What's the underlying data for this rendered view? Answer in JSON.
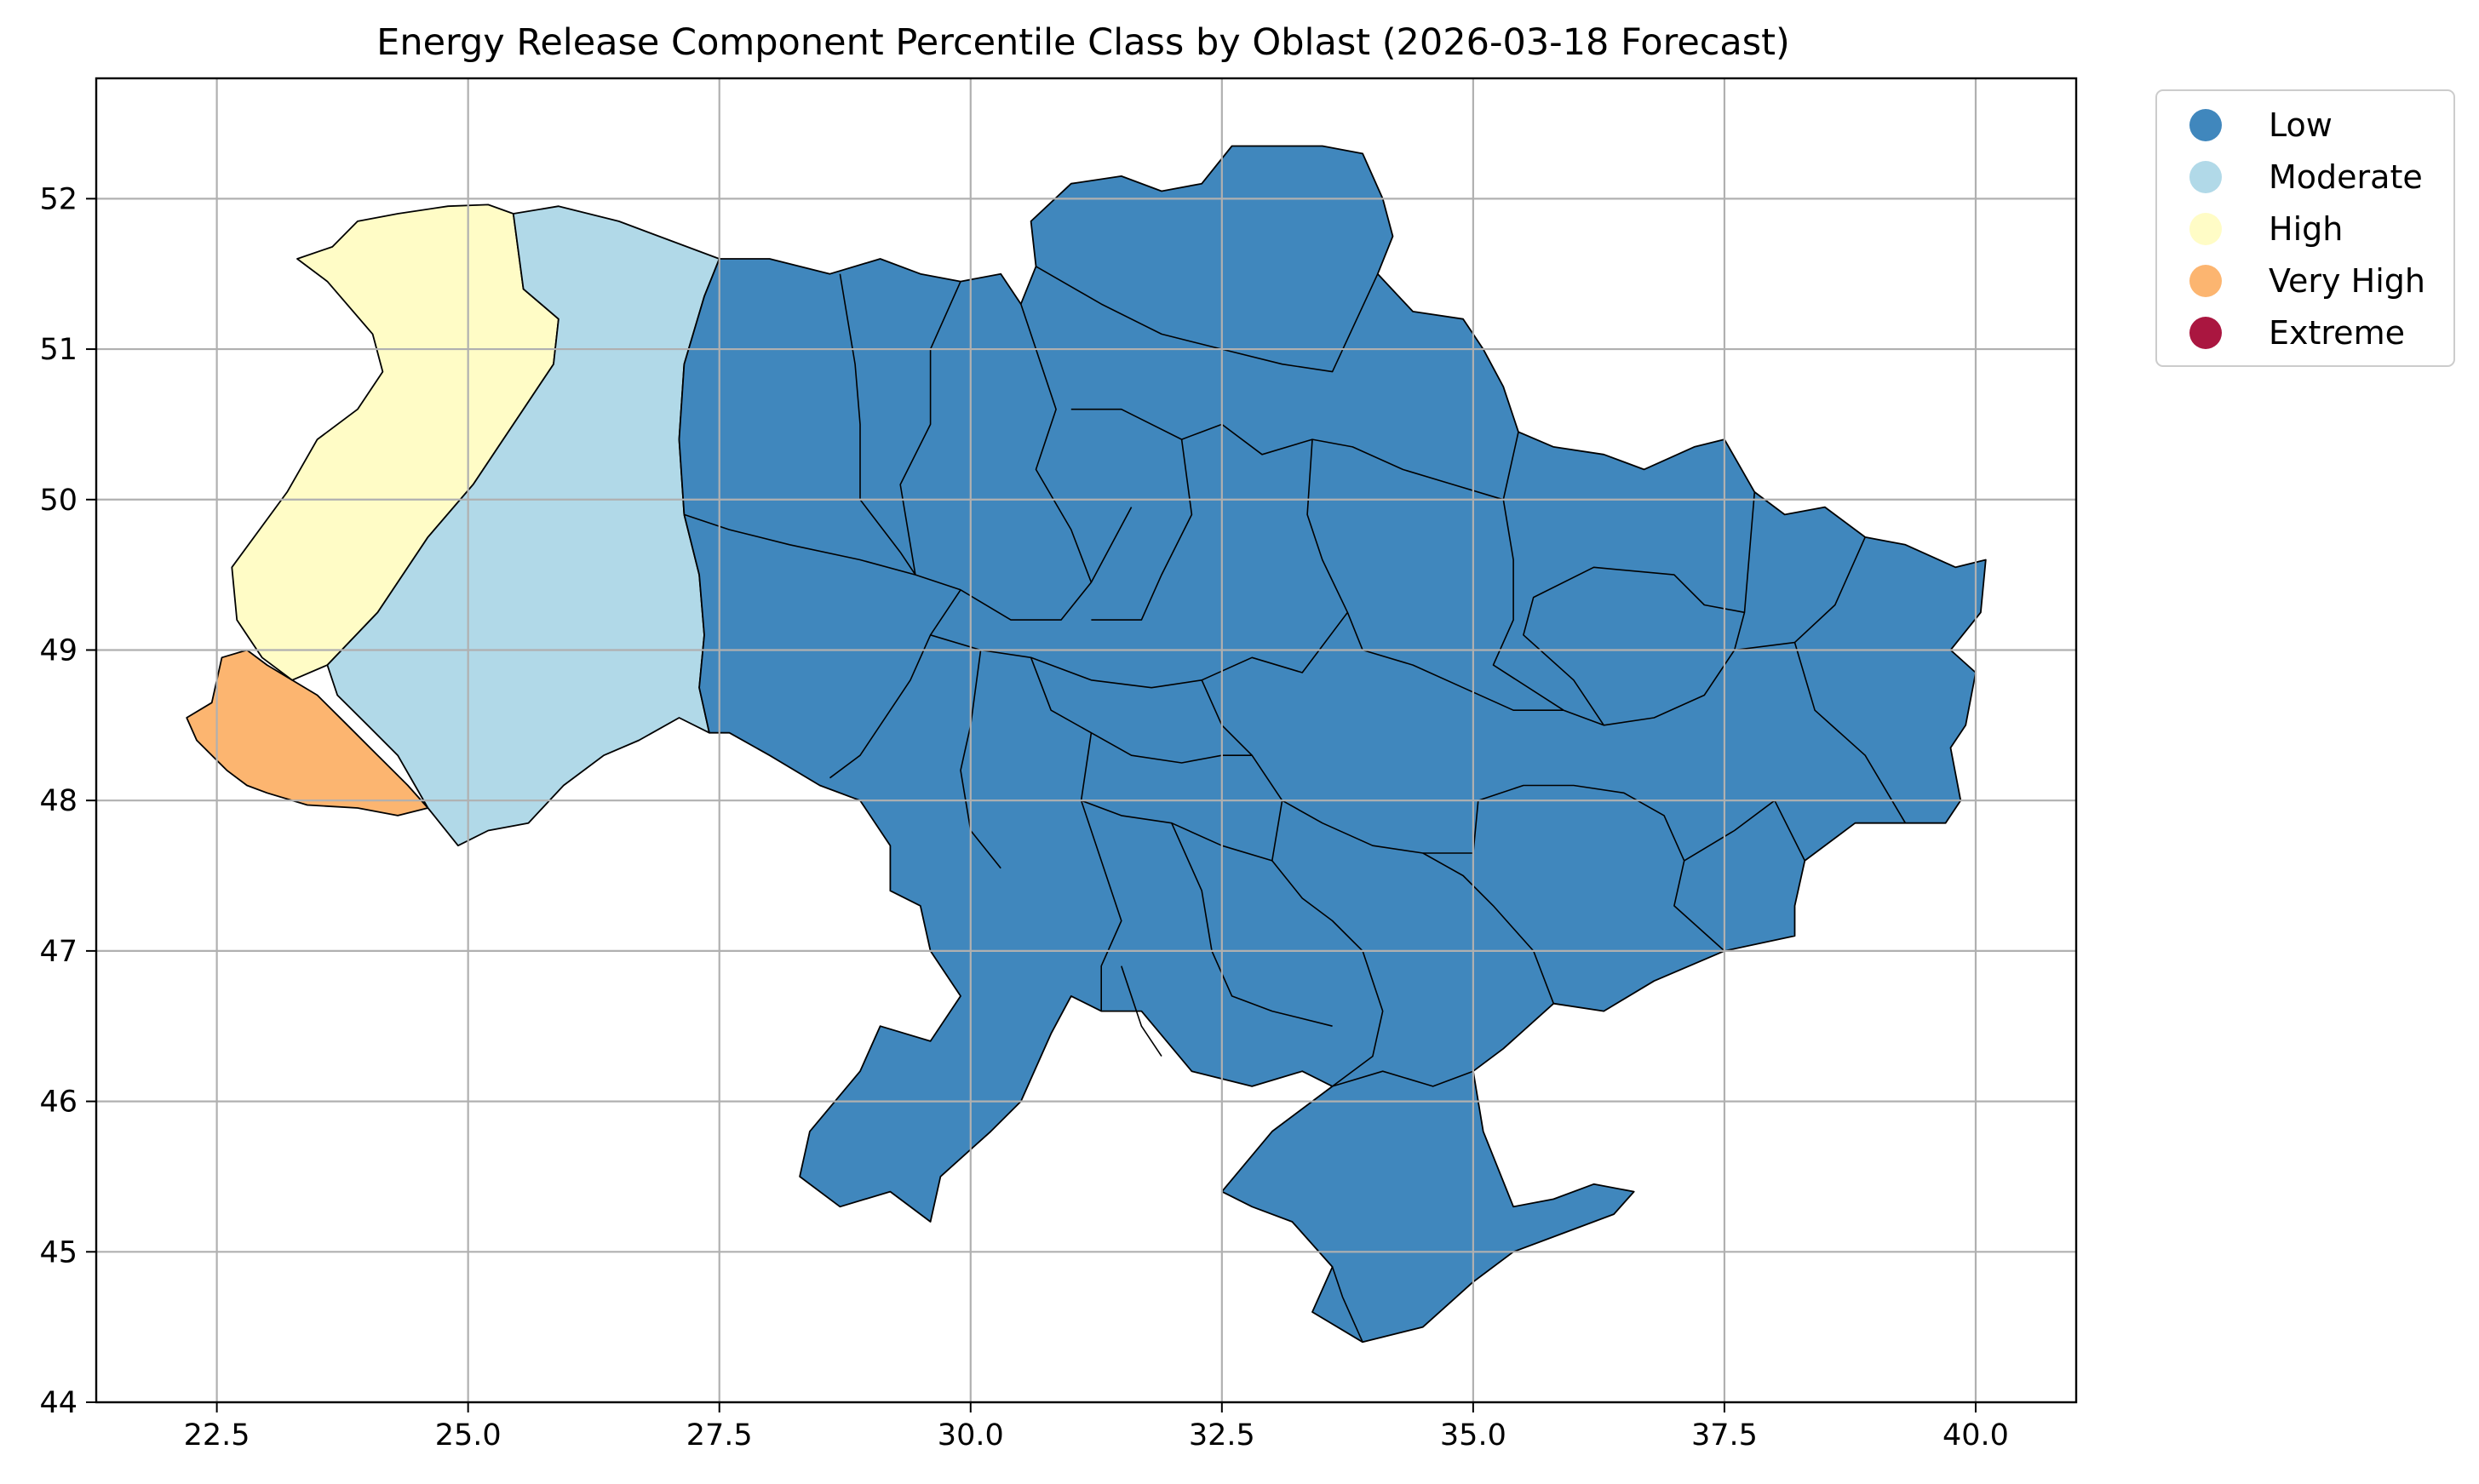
{
  "title": "Energy Release Component Percentile Class by Oblast (2026-03-18 Forecast)",
  "x_axis": {
    "range": [
      21.3,
      41.0
    ],
    "ticks": [
      "22.5",
      "25.0",
      "27.5",
      "30.0",
      "32.5",
      "35.0",
      "37.5",
      "40.0"
    ],
    "tick_values": [
      22.5,
      25.0,
      27.5,
      30.0,
      32.5,
      35.0,
      37.5,
      40.0
    ]
  },
  "y_axis": {
    "range": [
      44.0,
      52.8
    ],
    "ticks": [
      "44",
      "45",
      "46",
      "47",
      "48",
      "49",
      "50",
      "51",
      "52"
    ],
    "tick_values": [
      44,
      45,
      46,
      47,
      48,
      49,
      50,
      51,
      52
    ]
  },
  "grid": true,
  "legend": {
    "placement": "outside-top-right",
    "items": [
      {
        "label": "Low",
        "color": "#4087bd"
      },
      {
        "label": "Moderate",
        "color": "#b1d9e8"
      },
      {
        "label": "High",
        "color": "#fffcc6"
      },
      {
        "label": "Very High",
        "color": "#fcb570"
      },
      {
        "label": "Extreme",
        "color": "#aa1640"
      }
    ]
  },
  "regions": [
    {
      "class": "Very High",
      "color": "#fcb570",
      "lonlat": [
        [
          23.0,
          48.9
        ],
        [
          23.5,
          48.7
        ],
        [
          23.8,
          48.5
        ],
        [
          24.1,
          48.3
        ],
        [
          24.4,
          48.1
        ],
        [
          24.6,
          47.95
        ],
        [
          24.3,
          47.9
        ],
        [
          23.9,
          47.95
        ],
        [
          23.4,
          47.97
        ],
        [
          23.0,
          48.05
        ],
        [
          22.8,
          48.1
        ],
        [
          22.6,
          48.2
        ],
        [
          22.3,
          48.4
        ],
        [
          22.2,
          48.55
        ],
        [
          22.45,
          48.65
        ],
        [
          22.55,
          48.95
        ],
        [
          22.8,
          49.0
        ]
      ]
    },
    {
      "class": "High",
      "color": "#fffcc6",
      "lonlat": [
        [
          22.65,
          49.55
        ],
        [
          23.2,
          50.05
        ],
        [
          23.5,
          50.4
        ],
        [
          23.9,
          50.6
        ],
        [
          24.15,
          50.85
        ],
        [
          24.05,
          51.1
        ],
        [
          23.6,
          51.45
        ],
        [
          23.3,
          51.6
        ],
        [
          23.65,
          51.68
        ],
        [
          23.9,
          51.85
        ],
        [
          24.3,
          51.9
        ],
        [
          24.8,
          51.95
        ],
        [
          25.2,
          51.96
        ],
        [
          25.45,
          51.9
        ],
        [
          25.55,
          51.4
        ],
        [
          25.9,
          51.2
        ],
        [
          25.85,
          50.9
        ],
        [
          25.55,
          50.6
        ],
        [
          25.3,
          50.35
        ],
        [
          25.05,
          50.1
        ],
        [
          24.6,
          49.75
        ],
        [
          24.1,
          49.25
        ],
        [
          23.6,
          48.9
        ],
        [
          23.25,
          48.8
        ],
        [
          22.95,
          48.95
        ],
        [
          22.7,
          49.2
        ]
      ]
    },
    {
      "class": "Moderate",
      "color": "#b1d9e8",
      "lonlat": [
        [
          23.6,
          48.9
        ],
        [
          24.1,
          49.25
        ],
        [
          24.6,
          49.75
        ],
        [
          25.05,
          50.1
        ],
        [
          25.3,
          50.35
        ],
        [
          25.55,
          50.6
        ],
        [
          25.85,
          50.9
        ],
        [
          25.9,
          51.2
        ],
        [
          25.55,
          51.4
        ],
        [
          25.45,
          51.9
        ],
        [
          25.9,
          51.95
        ],
        [
          26.5,
          51.85
        ],
        [
          27.1,
          51.7
        ],
        [
          27.5,
          51.6
        ],
        [
          27.35,
          51.35
        ],
        [
          27.15,
          50.9
        ],
        [
          27.1,
          50.4
        ],
        [
          27.15,
          49.9
        ],
        [
          27.3,
          49.5
        ],
        [
          27.35,
          49.1
        ],
        [
          27.3,
          48.75
        ],
        [
          27.4,
          48.45
        ],
        [
          27.1,
          48.55
        ],
        [
          26.7,
          48.4
        ],
        [
          26.35,
          48.3
        ],
        [
          25.95,
          48.1
        ],
        [
          25.6,
          47.85
        ],
        [
          25.2,
          47.8
        ],
        [
          24.9,
          47.7
        ],
        [
          24.6,
          47.95
        ],
        [
          24.3,
          48.3
        ],
        [
          24.0,
          48.5
        ],
        [
          23.7,
          48.7
        ]
      ]
    },
    {
      "class": "Low",
      "color": "#4087bd",
      "lonlat": [
        [
          27.3,
          48.75
        ],
        [
          27.35,
          49.1
        ],
        [
          27.3,
          49.5
        ],
        [
          27.15,
          49.9
        ],
        [
          27.1,
          50.4
        ],
        [
          27.15,
          50.9
        ],
        [
          27.35,
          51.35
        ],
        [
          27.5,
          51.6
        ],
        [
          28.0,
          51.6
        ],
        [
          28.6,
          51.5
        ],
        [
          29.1,
          51.6
        ],
        [
          29.5,
          51.5
        ],
        [
          29.9,
          51.45
        ],
        [
          30.3,
          51.5
        ],
        [
          30.5,
          51.3
        ],
        [
          30.65,
          51.55
        ],
        [
          30.6,
          51.85
        ],
        [
          31.0,
          52.1
        ],
        [
          31.5,
          52.15
        ],
        [
          31.9,
          52.05
        ],
        [
          32.3,
          52.1
        ],
        [
          32.6,
          52.35
        ],
        [
          33.0,
          52.35
        ],
        [
          33.5,
          52.35
        ],
        [
          33.9,
          52.3
        ],
        [
          34.1,
          52.0
        ],
        [
          34.2,
          51.75
        ],
        [
          34.05,
          51.5
        ],
        [
          34.4,
          51.25
        ],
        [
          34.9,
          51.2
        ],
        [
          35.1,
          51.0
        ],
        [
          35.3,
          50.75
        ],
        [
          35.45,
          50.45
        ],
        [
          35.8,
          50.35
        ],
        [
          36.3,
          50.3
        ],
        [
          36.7,
          50.2
        ],
        [
          37.2,
          50.35
        ],
        [
          37.5,
          50.4
        ],
        [
          37.8,
          50.05
        ],
        [
          38.1,
          49.9
        ],
        [
          38.5,
          49.95
        ],
        [
          38.9,
          49.75
        ],
        [
          39.3,
          49.7
        ],
        [
          39.8,
          49.55
        ],
        [
          40.1,
          49.6
        ],
        [
          40.05,
          49.25
        ],
        [
          39.75,
          49.0
        ],
        [
          40.0,
          48.85
        ],
        [
          39.9,
          48.5
        ],
        [
          39.75,
          48.35
        ],
        [
          39.85,
          48.0
        ],
        [
          39.7,
          47.85
        ],
        [
          39.3,
          47.85
        ],
        [
          38.8,
          47.85
        ],
        [
          38.3,
          47.6
        ],
        [
          38.2,
          47.3
        ],
        [
          38.2,
          47.1
        ],
        [
          37.5,
          47.0
        ],
        [
          36.8,
          46.8
        ],
        [
          36.3,
          46.6
        ],
        [
          35.8,
          46.65
        ],
        [
          35.3,
          46.35
        ],
        [
          35.0,
          46.2
        ],
        [
          35.1,
          45.8
        ],
        [
          35.4,
          45.3
        ],
        [
          35.8,
          45.35
        ],
        [
          36.2,
          45.45
        ],
        [
          36.6,
          45.4
        ],
        [
          36.4,
          45.25
        ],
        [
          35.8,
          45.1
        ],
        [
          35.4,
          45.0
        ],
        [
          35.0,
          44.8
        ],
        [
          34.5,
          44.5
        ],
        [
          33.9,
          44.4
        ],
        [
          33.4,
          44.6
        ],
        [
          33.6,
          44.9
        ],
        [
          33.2,
          45.2
        ],
        [
          32.8,
          45.3
        ],
        [
          32.5,
          45.4
        ],
        [
          33.0,
          45.8
        ],
        [
          33.6,
          46.1
        ],
        [
          33.3,
          46.2
        ],
        [
          32.8,
          46.1
        ],
        [
          32.2,
          46.2
        ],
        [
          31.7,
          46.6
        ],
        [
          31.3,
          46.6
        ],
        [
          31.0,
          46.7
        ],
        [
          30.8,
          46.45
        ],
        [
          30.5,
          46.0
        ],
        [
          30.2,
          45.8
        ],
        [
          29.7,
          45.5
        ],
        [
          29.6,
          45.2
        ],
        [
          29.2,
          45.4
        ],
        [
          28.7,
          45.3
        ],
        [
          28.3,
          45.5
        ],
        [
          28.4,
          45.8
        ],
        [
          28.9,
          46.2
        ],
        [
          29.1,
          46.5
        ],
        [
          29.6,
          46.4
        ],
        [
          29.9,
          46.7
        ],
        [
          29.6,
          47.0
        ],
        [
          29.5,
          47.3
        ],
        [
          29.2,
          47.4
        ],
        [
          29.2,
          47.7
        ],
        [
          28.9,
          48.0
        ],
        [
          28.5,
          48.1
        ],
        [
          28.0,
          48.3
        ],
        [
          27.6,
          48.45
        ],
        [
          27.4,
          48.45
        ]
      ]
    }
  ],
  "borders": [
    [
      [
        28.7,
        51.5
      ],
      [
        28.85,
        50.9
      ],
      [
        28.9,
        50.5
      ],
      [
        28.9,
        50.0
      ],
      [
        29.3,
        49.65
      ],
      [
        29.45,
        49.5
      ]
    ],
    [
      [
        27.15,
        49.9
      ],
      [
        27.6,
        49.8
      ],
      [
        28.2,
        49.7
      ],
      [
        28.9,
        49.6
      ],
      [
        29.45,
        49.5
      ],
      [
        29.9,
        49.4
      ],
      [
        30.4,
        49.2
      ],
      [
        30.9,
        49.2
      ],
      [
        31.2,
        49.45
      ],
      [
        31.6,
        49.95
      ]
    ],
    [
      [
        29.9,
        51.45
      ],
      [
        29.6,
        51.0
      ],
      [
        29.6,
        50.5
      ],
      [
        29.3,
        50.1
      ],
      [
        29.45,
        49.5
      ]
    ],
    [
      [
        30.5,
        51.3
      ],
      [
        30.7,
        50.9
      ],
      [
        30.85,
        50.6
      ],
      [
        30.65,
        50.2
      ],
      [
        31.0,
        49.8
      ],
      [
        31.2,
        49.45
      ]
    ],
    [
      [
        30.65,
        51.55
      ],
      [
        31.3,
        51.3
      ],
      [
        31.9,
        51.1
      ],
      [
        32.5,
        51.0
      ],
      [
        33.1,
        50.9
      ],
      [
        33.6,
        50.85
      ],
      [
        34.05,
        51.5
      ]
    ],
    [
      [
        31.0,
        50.6
      ],
      [
        31.5,
        50.6
      ],
      [
        32.1,
        50.4
      ],
      [
        32.5,
        50.5
      ],
      [
        32.9,
        50.3
      ],
      [
        33.4,
        50.4
      ],
      [
        33.8,
        50.35
      ],
      [
        34.3,
        50.2
      ],
      [
        34.8,
        50.1
      ],
      [
        35.3,
        50.0
      ],
      [
        35.45,
        50.45
      ]
    ],
    [
      [
        32.1,
        50.4
      ],
      [
        32.2,
        49.9
      ],
      [
        31.9,
        49.5
      ],
      [
        31.7,
        49.2
      ],
      [
        31.2,
        49.2
      ]
    ],
    [
      [
        33.4,
        50.4
      ],
      [
        33.35,
        49.9
      ],
      [
        33.5,
        49.6
      ],
      [
        33.75,
        49.25
      ],
      [
        33.9,
        49.0
      ],
      [
        34.4,
        48.9
      ],
      [
        34.9,
        48.75
      ],
      [
        35.4,
        48.6
      ],
      [
        35.9,
        48.6
      ]
    ],
    [
      [
        29.9,
        49.4
      ],
      [
        29.6,
        49.1
      ],
      [
        29.4,
        48.8
      ],
      [
        29.2,
        48.6
      ],
      [
        28.9,
        48.3
      ],
      [
        28.6,
        48.15
      ]
    ],
    [
      [
        29.6,
        49.1
      ],
      [
        30.1,
        49.0
      ],
      [
        30.6,
        48.95
      ],
      [
        31.2,
        48.8
      ],
      [
        31.8,
        48.75
      ],
      [
        32.3,
        48.8
      ],
      [
        32.8,
        48.95
      ],
      [
        33.3,
        48.85
      ],
      [
        33.75,
        49.25
      ]
    ],
    [
      [
        32.3,
        48.8
      ],
      [
        32.5,
        48.5
      ],
      [
        32.8,
        48.3
      ],
      [
        33.1,
        48.0
      ],
      [
        33.5,
        47.85
      ],
      [
        34.0,
        47.7
      ],
      [
        34.5,
        47.65
      ],
      [
        35.0,
        47.65
      ]
    ],
    [
      [
        30.6,
        48.95
      ],
      [
        30.8,
        48.6
      ],
      [
        31.2,
        48.45
      ],
      [
        31.6,
        48.3
      ],
      [
        32.1,
        48.25
      ],
      [
        32.5,
        48.3
      ],
      [
        32.8,
        48.3
      ]
    ],
    [
      [
        30.1,
        49.0
      ],
      [
        30.0,
        48.5
      ],
      [
        29.9,
        48.2
      ],
      [
        30.0,
        47.8
      ],
      [
        30.3,
        47.55
      ]
    ],
    [
      [
        31.2,
        48.45
      ],
      [
        31.1,
        48.0
      ],
      [
        31.3,
        47.6
      ],
      [
        31.5,
        47.2
      ],
      [
        31.3,
        46.9
      ],
      [
        31.3,
        46.6
      ]
    ],
    [
      [
        31.1,
        48.0
      ],
      [
        31.5,
        47.9
      ],
      [
        32.0,
        47.85
      ],
      [
        32.5,
        47.7
      ],
      [
        33.0,
        47.6
      ],
      [
        33.1,
        48.0
      ]
    ],
    [
      [
        32.0,
        47.85
      ],
      [
        32.3,
        47.4
      ],
      [
        32.4,
        47.0
      ],
      [
        32.6,
        46.7
      ],
      [
        33.0,
        46.6
      ],
      [
        33.6,
        46.5
      ]
    ],
    [
      [
        33.0,
        47.6
      ],
      [
        33.3,
        47.35
      ],
      [
        33.6,
        47.2
      ],
      [
        33.9,
        47.0
      ],
      [
        34.1,
        46.6
      ],
      [
        34.0,
        46.3
      ],
      [
        33.6,
        46.1
      ]
    ],
    [
      [
        34.5,
        47.65
      ],
      [
        34.9,
        47.5
      ],
      [
        35.2,
        47.3
      ],
      [
        35.6,
        47.0
      ],
      [
        35.8,
        46.65
      ]
    ],
    [
      [
        35.0,
        47.65
      ],
      [
        35.05,
        48.0
      ],
      [
        35.5,
        48.1
      ],
      [
        36.0,
        48.1
      ],
      [
        36.5,
        48.05
      ],
      [
        36.9,
        47.9
      ],
      [
        37.1,
        47.6
      ],
      [
        37.0,
        47.3
      ],
      [
        37.5,
        47.0
      ]
    ],
    [
      [
        35.9,
        48.6
      ],
      [
        36.3,
        48.5
      ],
      [
        36.8,
        48.55
      ],
      [
        37.3,
        48.7
      ],
      [
        37.6,
        49.0
      ],
      [
        37.7,
        49.25
      ],
      [
        37.8,
        50.05
      ]
    ],
    [
      [
        35.3,
        50.0
      ],
      [
        35.4,
        49.6
      ],
      [
        35.4,
        49.2
      ],
      [
        35.2,
        48.9
      ],
      [
        35.9,
        48.6
      ]
    ],
    [
      [
        36.3,
        48.5
      ],
      [
        36.0,
        48.8
      ],
      [
        35.5,
        49.1
      ],
      [
        35.6,
        49.35
      ],
      [
        36.2,
        49.55
      ],
      [
        37.0,
        49.5
      ],
      [
        37.3,
        49.3
      ],
      [
        37.7,
        49.25
      ]
    ],
    [
      [
        37.1,
        47.6
      ],
      [
        37.6,
        47.8
      ],
      [
        38.0,
        48.0
      ],
      [
        38.3,
        47.6
      ]
    ],
    [
      [
        37.6,
        49.0
      ],
      [
        38.2,
        49.05
      ],
      [
        38.6,
        49.3
      ],
      [
        38.9,
        49.75
      ]
    ],
    [
      [
        38.2,
        49.05
      ],
      [
        38.4,
        48.6
      ],
      [
        38.9,
        48.3
      ],
      [
        39.3,
        47.85
      ]
    ],
    [
      [
        33.9,
        44.4
      ],
      [
        33.7,
        44.7
      ],
      [
        33.6,
        44.9
      ]
    ],
    [
      [
        33.6,
        46.1
      ],
      [
        34.1,
        46.2
      ],
      [
        34.6,
        46.1
      ],
      [
        35.0,
        46.2
      ]
    ],
    [
      [
        31.5,
        46.9
      ],
      [
        31.7,
        46.5
      ],
      [
        31.9,
        46.3
      ]
    ]
  ]
}
